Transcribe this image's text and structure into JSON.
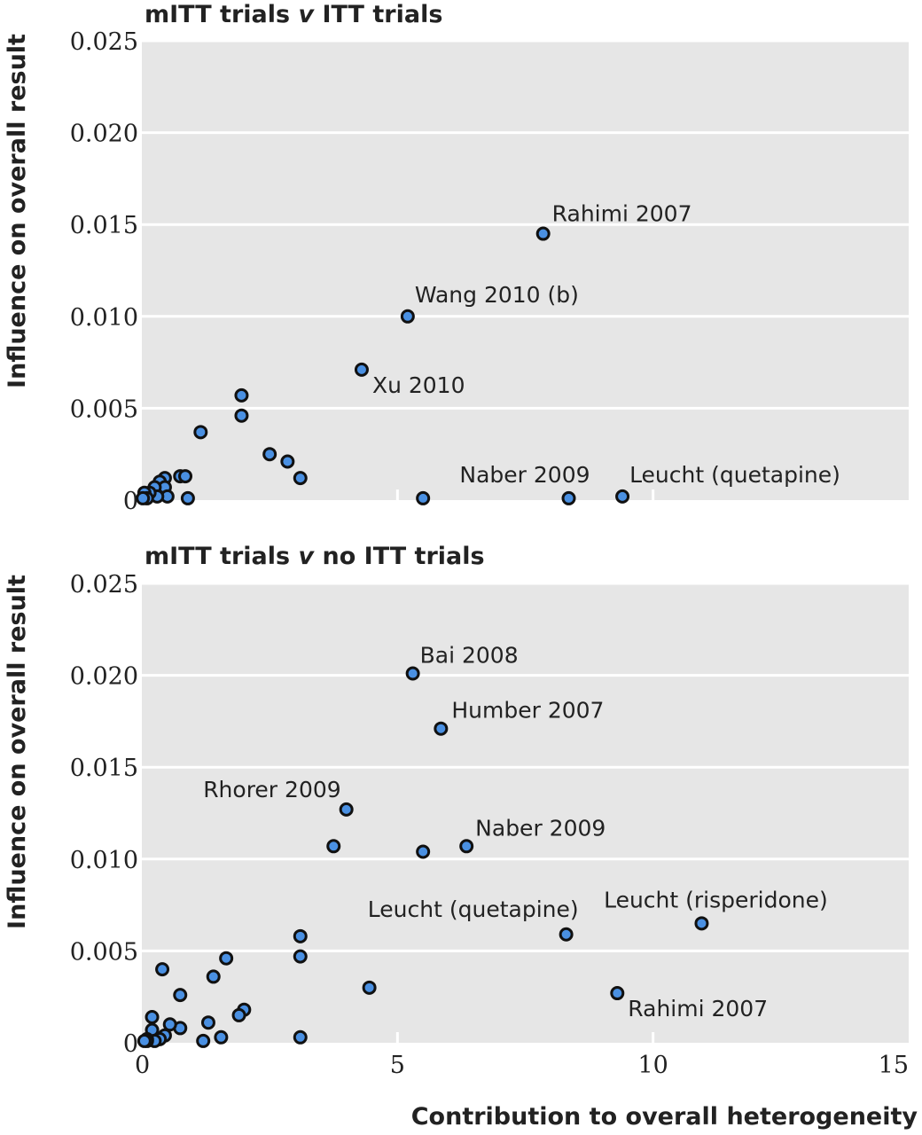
{
  "chart_data": [
    {
      "type": "scatter",
      "title": "mITT trials v ITT trials",
      "title_parts": {
        "a": "mITT trials ",
        "v": "v",
        "b": " ITT trials"
      },
      "ylabel": "Influence on overall result",
      "xlim": [
        0,
        15
      ],
      "ylim": [
        0,
        0.025
      ],
      "yticks": [
        "0",
        "0.005",
        "0.010",
        "0.015",
        "0.020",
        "0.025"
      ],
      "xticks": [
        "0",
        "5",
        "10",
        "15"
      ],
      "show_xtick_labels": false,
      "grid": true,
      "points": [
        {
          "x": 7.85,
          "y": 0.0145,
          "label": "Rahimi 2007"
        },
        {
          "x": 5.2,
          "y": 0.01,
          "label": "Wang 2010 (b)"
        },
        {
          "x": 4.3,
          "y": 0.0071,
          "label": "Xu 2010"
        },
        {
          "x": 8.35,
          "y": 0.0001,
          "label": "Naber 2009"
        },
        {
          "x": 9.4,
          "y": 0.0002,
          "label": "Leucht (quetapine)"
        },
        {
          "x": 1.95,
          "y": 0.0057
        },
        {
          "x": 1.95,
          "y": 0.0046
        },
        {
          "x": 1.15,
          "y": 0.0037
        },
        {
          "x": 2.5,
          "y": 0.0025
        },
        {
          "x": 2.85,
          "y": 0.0021
        },
        {
          "x": 3.1,
          "y": 0.0012
        },
        {
          "x": 5.5,
          "y": 0.0001
        },
        {
          "x": 0.75,
          "y": 0.0013
        },
        {
          "x": 0.85,
          "y": 0.0013
        },
        {
          "x": 0.9,
          "y": 0.0001
        },
        {
          "x": 0.45,
          "y": 0.0012
        },
        {
          "x": 0.35,
          "y": 0.001
        },
        {
          "x": 0.45,
          "y": 0.0007
        },
        {
          "x": 0.25,
          "y": 0.0007
        },
        {
          "x": 0.5,
          "y": 0.0002
        },
        {
          "x": 0.3,
          "y": 0.0002
        },
        {
          "x": 0.15,
          "y": 0.0004
        },
        {
          "x": 0.05,
          "y": 0.0004
        },
        {
          "x": 0.1,
          "y": 0.0001
        },
        {
          "x": 0.02,
          "y": 0.0001
        }
      ]
    },
    {
      "type": "scatter",
      "title": "mITT trials v no ITT trials",
      "title_parts": {
        "a": "mITT trials ",
        "v": "v",
        "b": " no ITT trials"
      },
      "ylabel": "Influence on overall result",
      "xlabel": "Contribution to overall heterogeneity",
      "xlim": [
        0,
        15
      ],
      "ylim": [
        0,
        0.025
      ],
      "yticks": [
        "0",
        "0.005",
        "0.010",
        "0.015",
        "0.020",
        "0.025"
      ],
      "xticks": [
        "0",
        "5",
        "10",
        "15"
      ],
      "show_xtick_labels": true,
      "grid": true,
      "points": [
        {
          "x": 5.3,
          "y": 0.0201,
          "label": "Bai 2008"
        },
        {
          "x": 5.85,
          "y": 0.0171,
          "label": "Humber 2007"
        },
        {
          "x": 4.0,
          "y": 0.0127,
          "label": "Rhorer 2009"
        },
        {
          "x": 6.35,
          "y": 0.0107,
          "label": "Naber 2009"
        },
        {
          "x": 8.3,
          "y": 0.0059,
          "label": "Leucht (quetapine)"
        },
        {
          "x": 10.95,
          "y": 0.0065,
          "label": "Leucht (risperidone)"
        },
        {
          "x": 9.3,
          "y": 0.0027,
          "label": "Rahimi 2007"
        },
        {
          "x": 3.75,
          "y": 0.0107
        },
        {
          "x": 5.5,
          "y": 0.0104
        },
        {
          "x": 3.1,
          "y": 0.0058
        },
        {
          "x": 3.1,
          "y": 0.0047
        },
        {
          "x": 4.45,
          "y": 0.003
        },
        {
          "x": 1.65,
          "y": 0.0046
        },
        {
          "x": 1.4,
          "y": 0.0036
        },
        {
          "x": 0.4,
          "y": 0.004
        },
        {
          "x": 0.75,
          "y": 0.0026
        },
        {
          "x": 2.0,
          "y": 0.0018
        },
        {
          "x": 1.9,
          "y": 0.0015
        },
        {
          "x": 1.3,
          "y": 0.0011
        },
        {
          "x": 1.55,
          "y": 0.0003
        },
        {
          "x": 1.2,
          "y": 0.0001
        },
        {
          "x": 3.1,
          "y": 0.0003
        },
        {
          "x": 0.75,
          "y": 0.0008
        },
        {
          "x": 0.55,
          "y": 0.001
        },
        {
          "x": 0.2,
          "y": 0.0014
        },
        {
          "x": 0.2,
          "y": 0.0007
        },
        {
          "x": 0.45,
          "y": 0.0004
        },
        {
          "x": 0.35,
          "y": 0.0002
        },
        {
          "x": 0.25,
          "y": 0.0001
        },
        {
          "x": 0.1,
          "y": 0.0002
        },
        {
          "x": 0.1,
          "y": 0.0001
        },
        {
          "x": 0.05,
          "y": 0.0001
        }
      ]
    }
  ]
}
